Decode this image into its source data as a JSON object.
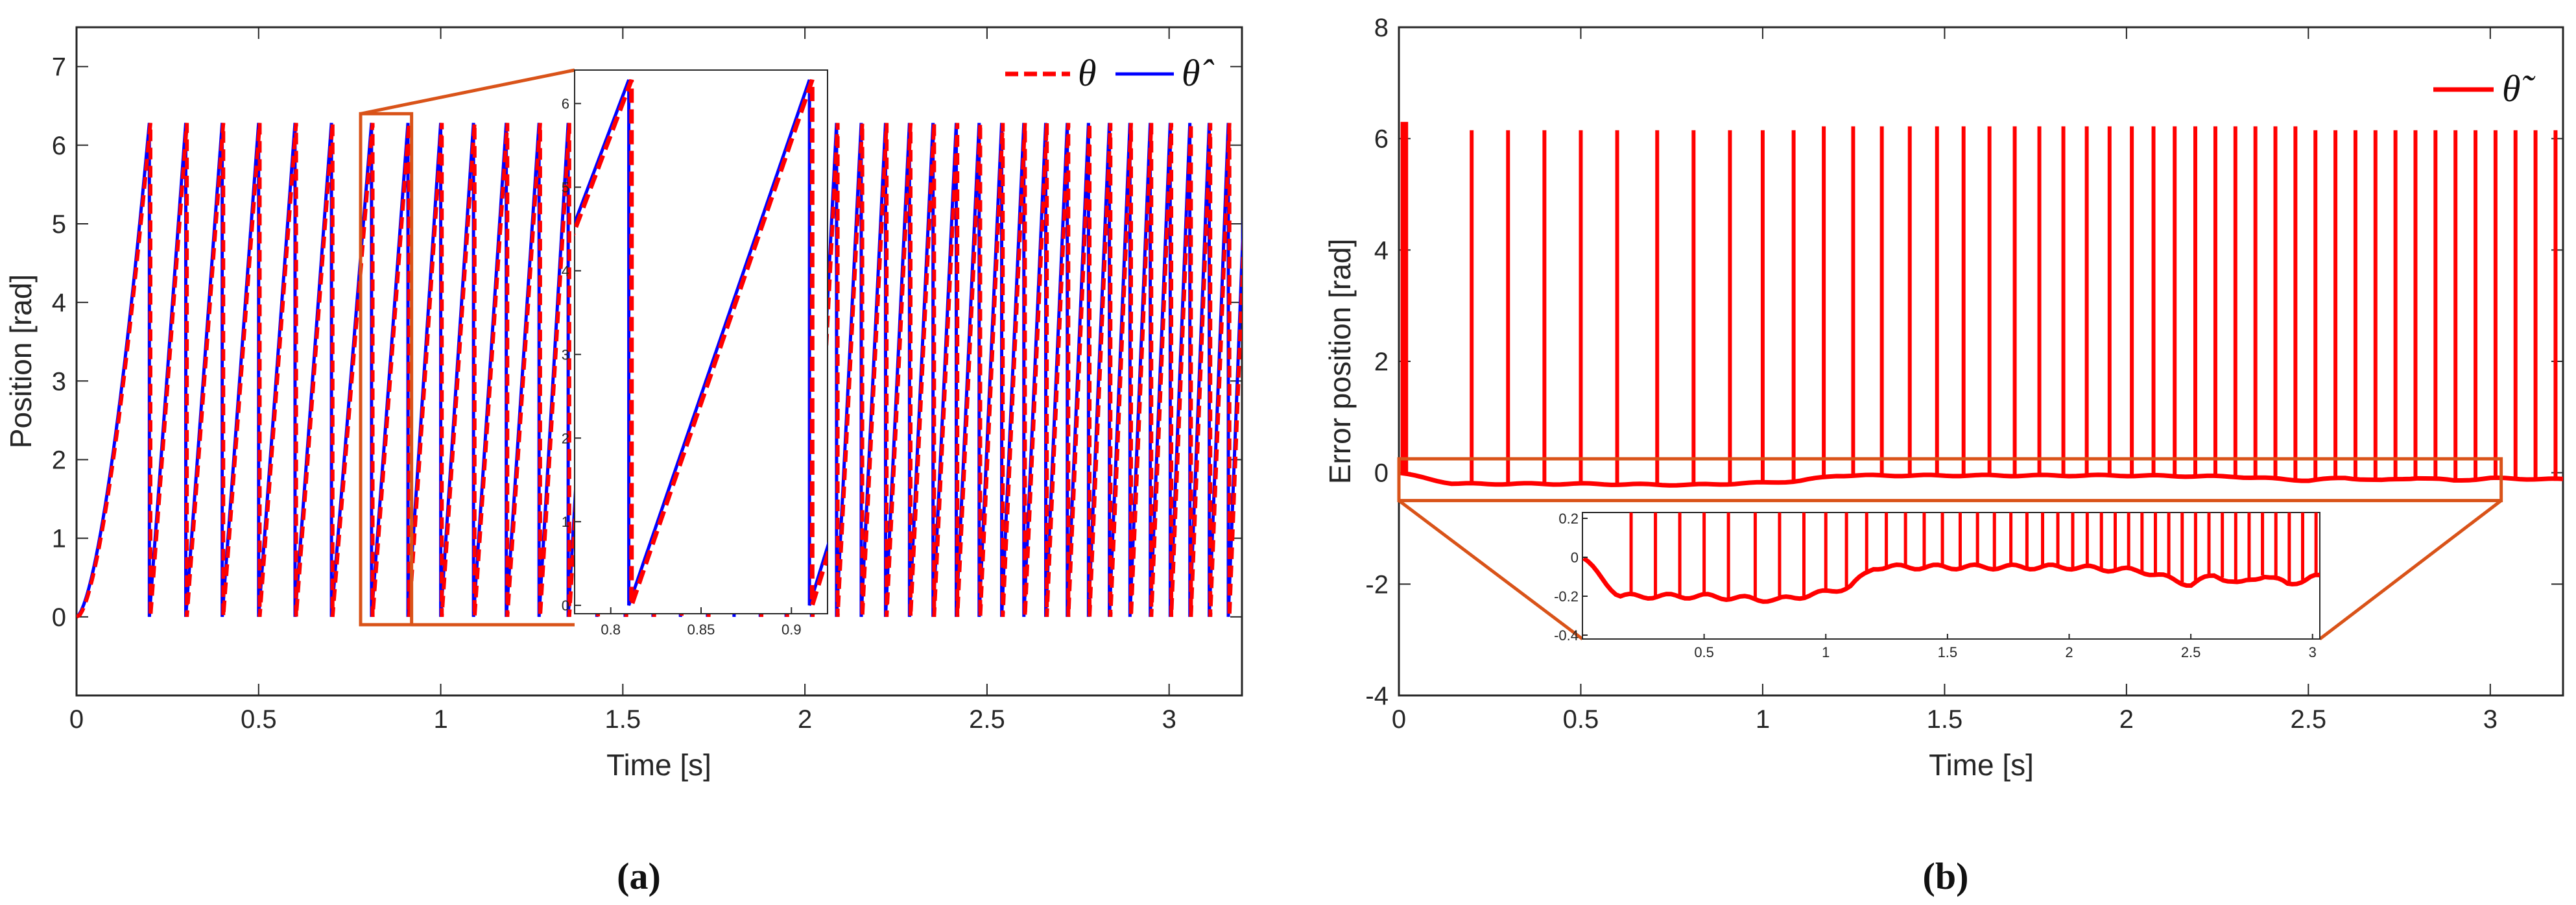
{
  "colors": {
    "reference": "#ff0000",
    "estimate": "#0000ff",
    "error": "#ff0000",
    "zoom_box": "#d95319",
    "axis": "#262626"
  },
  "chart_data": [
    {
      "panel": "a",
      "type": "line",
      "panel_label": "(a)",
      "xlabel": "Time [s]",
      "ylabel": "Position [rad]",
      "xlim": [
        0,
        3.2
      ],
      "ylim": [
        -1,
        7.5
      ],
      "x_ticks": [
        0,
        0.5,
        1,
        1.5,
        2,
        2.5,
        3
      ],
      "x_tick_labels": [
        "0",
        "0.5",
        "1",
        "1.5",
        "2",
        "2.5",
        "3"
      ],
      "y_ticks": [
        0,
        1,
        2,
        3,
        4,
        5,
        6,
        7
      ],
      "y_tick_labels": [
        "0",
        "1",
        "2",
        "3",
        "4",
        "5",
        "6",
        "7"
      ],
      "legend_position": "top-right",
      "series": [
        {
          "name": "θ",
          "style": "dashed"
        },
        {
          "name": "θ̂",
          "style": "solid"
        }
      ],
      "signal": {
        "amplitude": 6.283,
        "wrap_times": [
          0.2,
          0.3,
          0.4,
          0.5,
          0.6,
          0.7,
          0.81,
          0.91,
          1.0,
          1.09,
          1.18,
          1.27
        ]
      },
      "inset": {
        "x_range": [
          0.78,
          0.92
        ],
        "y_range": [
          -0.1,
          6.4
        ],
        "x_ticks": [
          0.8,
          0.85,
          0.9
        ],
        "x_tick_labels": [
          "0.8",
          "0.85",
          "0.9"
        ],
        "y_ticks": [
          0,
          1,
          2,
          3,
          4,
          5,
          6
        ],
        "y_tick_labels": [
          "0",
          "1",
          "2",
          "3",
          "4",
          "5",
          "6"
        ]
      }
    },
    {
      "panel": "b",
      "type": "line",
      "panel_label": "(b)",
      "xlabel": "Time [s]",
      "ylabel": "Error position [rad]",
      "xlim": [
        0,
        3.2
      ],
      "ylim": [
        -4,
        8
      ],
      "x_ticks": [
        0,
        0.5,
        1,
        1.5,
        2,
        2.5,
        3
      ],
      "x_tick_labels": [
        "0",
        "0.5",
        "1",
        "1.5",
        "2",
        "2.5",
        "3"
      ],
      "y_ticks": [
        -4,
        -2,
        0,
        2,
        4,
        6,
        8
      ],
      "y_tick_labels": [
        "-4",
        "-2",
        "0",
        "2",
        "4",
        "6",
        "8"
      ],
      "legend_position": "top-right",
      "series": [
        {
          "name": "θ̃",
          "style": "solid"
        }
      ],
      "baseline": {
        "x": [
          0,
          0.15,
          0.5,
          0.8,
          1.0,
          1.1,
          1.2,
          1.5,
          2.0,
          2.3,
          2.5,
          2.6,
          2.7,
          2.8,
          2.9,
          3.0,
          3.2
        ],
        "y": [
          0,
          -0.2,
          -0.2,
          -0.22,
          -0.18,
          -0.15,
          -0.05,
          -0.05,
          -0.05,
          -0.07,
          -0.14,
          -0.09,
          -0.14,
          -0.09,
          -0.14,
          -0.1,
          -0.12
        ]
      },
      "spike_height": 6.2,
      "inset": {
        "x_range": [
          0,
          3.03
        ],
        "y_range": [
          -0.42,
          0.23
        ],
        "x_ticks": [
          0.5,
          1,
          1.5,
          2,
          2.5,
          3
        ],
        "x_tick_labels": [
          "0.5",
          "1",
          "1.5",
          "2",
          "2.5",
          "3"
        ],
        "y_ticks": [
          0.2,
          0,
          -0.2,
          -0.4
        ],
        "y_tick_labels": [
          "0.2",
          "0",
          "-0.2",
          "-0.4"
        ]
      }
    }
  ]
}
